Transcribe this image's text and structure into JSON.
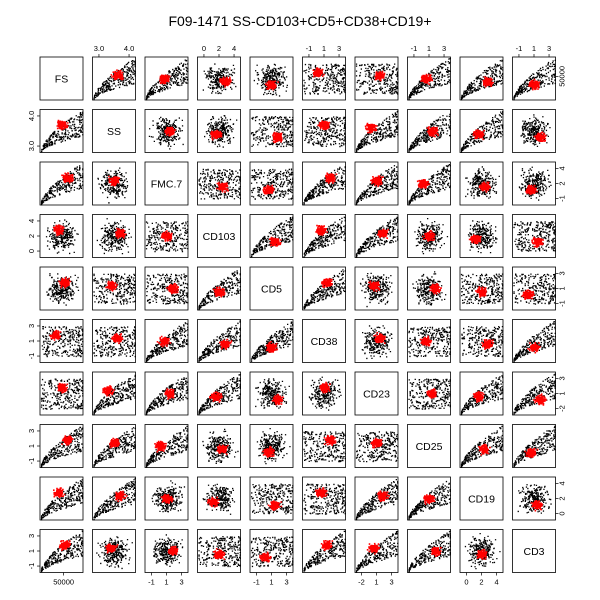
{
  "chart_data": {
    "type": "scatter",
    "title": "F09-1471 SS-CD103+CD5+CD38+CD19+",
    "variables": [
      "FS",
      "SS",
      "FMC.7",
      "CD103",
      "CD5",
      "CD38",
      "CD23",
      "CD25",
      "CD19",
      "CD3"
    ],
    "colors": {
      "background_events": "#000000",
      "gated_events": "#ff0000"
    },
    "axes": {
      "top": [
        {
          "panel": 1,
          "ticks": [
            "3.0",
            "4.0"
          ]
        },
        {
          "panel": 3,
          "ticks": [
            "0",
            "2",
            "4"
          ]
        },
        {
          "panel": 5,
          "ticks": [
            "-1",
            "1",
            "3"
          ]
        },
        {
          "panel": 7,
          "ticks": [
            "-1",
            "1",
            "3"
          ]
        },
        {
          "panel": 9,
          "ticks": [
            "-1",
            "1",
            "3"
          ]
        }
      ],
      "bottom": [
        {
          "panel": 0,
          "ticks": [
            "50000"
          ]
        },
        {
          "panel": 2,
          "ticks": [
            "-1",
            "1",
            "3"
          ]
        },
        {
          "panel": 4,
          "ticks": [
            "-1",
            "1",
            "3"
          ]
        },
        {
          "panel": 6,
          "ticks": [
            "-2",
            "1",
            "3"
          ]
        },
        {
          "panel": 8,
          "ticks": [
            "0",
            "2",
            "4"
          ]
        }
      ],
      "left": [
        {
          "panel": 1,
          "ticks": [
            "3.0",
            "4.0"
          ]
        },
        {
          "panel": 3,
          "ticks": [
            "0",
            "2",
            "4"
          ]
        },
        {
          "panel": 5,
          "ticks": [
            "-1",
            "1",
            "3"
          ]
        },
        {
          "panel": 7,
          "ticks": [
            "-1",
            "1",
            "3"
          ]
        },
        {
          "panel": 9,
          "ticks": [
            "-1",
            "1",
            "3"
          ]
        }
      ],
      "right": [
        {
          "panel": 0,
          "ticks": [
            "50000"
          ]
        },
        {
          "panel": 2,
          "ticks": [
            "-1",
            "2",
            "4"
          ]
        },
        {
          "panel": 4,
          "ticks": [
            "-1",
            "1",
            "3"
          ]
        },
        {
          "panel": 6,
          "ticks": [
            "-2",
            "1",
            "3"
          ]
        },
        {
          "panel": 8,
          "ticks": [
            "0",
            "2",
            "4"
          ]
        }
      ]
    },
    "legend": "none",
    "grid": false
  }
}
